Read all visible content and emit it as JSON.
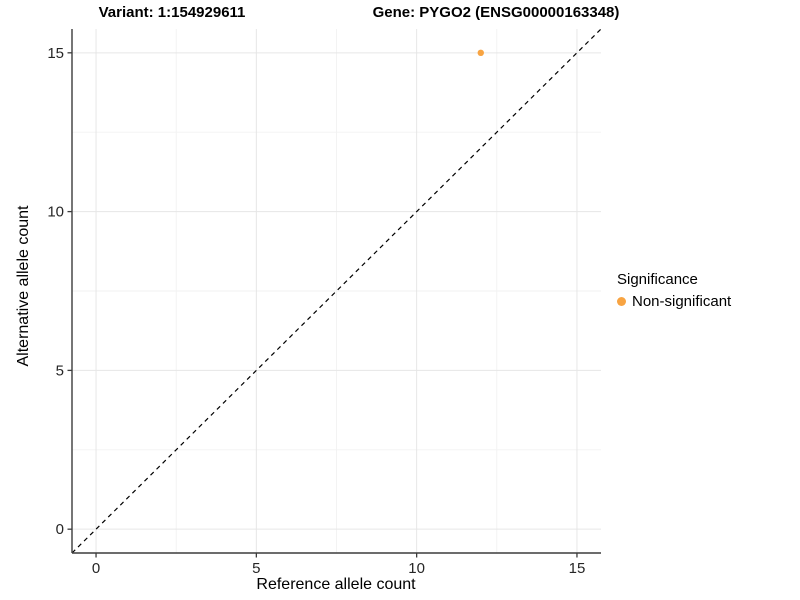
{
  "header": {
    "variant_title": "Variant: 1:154929611",
    "gene_title": "Gene: PYGO2 (ENSG00000163348)"
  },
  "axes": {
    "x": {
      "label": "Reference allele count",
      "ticks": [
        0,
        5,
        10,
        15
      ],
      "minor_ticks": [
        2.5,
        7.5,
        12.5
      ],
      "range": [
        -0.75,
        15.75
      ]
    },
    "y": {
      "label": "Alternative allele count",
      "ticks": [
        0,
        5,
        10,
        15
      ],
      "minor_ticks": [
        2.5,
        7.5,
        12.5
      ],
      "range": [
        -0.75,
        15.75
      ]
    }
  },
  "legend": {
    "title": "Significance",
    "items": [
      {
        "label": "Non-significant",
        "color": "#F8A442",
        "marker": "circle-icon"
      }
    ]
  },
  "chart_data": {
    "type": "scatter",
    "title": "Variant: 1:154929611  |  Gene: PYGO2 (ENSG00000163348)",
    "xlabel": "Reference allele count",
    "ylabel": "Alternative allele count",
    "xlim": [
      -0.75,
      15.75
    ],
    "ylim": [
      -0.75,
      15.75
    ],
    "x_ticks": [
      0,
      5,
      10,
      15
    ],
    "y_ticks": [
      0,
      5,
      10,
      15
    ],
    "grid": true,
    "legend_position": "right",
    "series": [
      {
        "name": "Non-significant",
        "color": "#F8A442",
        "points": [
          {
            "x": 12,
            "y": 15
          }
        ]
      }
    ],
    "reference_line": {
      "type": "identity",
      "slope": 1,
      "intercept": 0,
      "style": "dashed",
      "color": "#000000"
    }
  },
  "colors": {
    "background": "#FFFFFF",
    "major_grid": "#E6E6E6",
    "minor_grid": "#F2F2F2",
    "axis_line": "#3C3C3C",
    "tick_text": "#262626",
    "point": "#F8A442",
    "dashed_line": "#000000"
  }
}
